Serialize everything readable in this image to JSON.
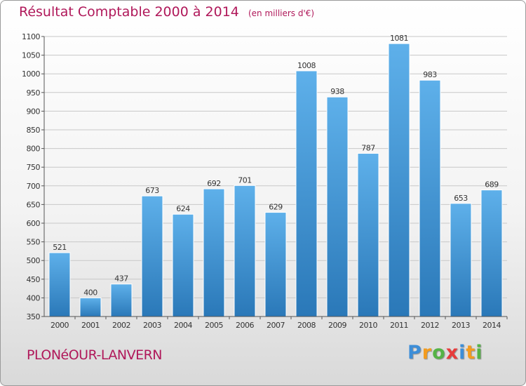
{
  "title": "Résultat Comptable 2000 à 2014",
  "unit_note": "(en milliers d'€)",
  "place_name": "PLONéOUR-LANVERN",
  "logo": {
    "text": "Proxiti",
    "letters": [
      {
        "char": "P",
        "color": "#3d8ed8"
      },
      {
        "char": "r",
        "color": "#f39c1f"
      },
      {
        "char": "o",
        "color": "#55b346"
      },
      {
        "char": "x",
        "color": "#e73c3c"
      },
      {
        "char": "i",
        "color": "#3d8ed8"
      },
      {
        "char": "t",
        "color": "#f39c1f"
      },
      {
        "char": "i",
        "color": "#55b346"
      }
    ]
  },
  "colors": {
    "accent": "#b0185a",
    "bar_top": "#5eb0ea",
    "bar_bottom": "#2a78b8",
    "grid": "#c8c8c8",
    "text": "#333333"
  },
  "chart_data": {
    "type": "bar",
    "title": "Résultat Comptable 2000 à 2014",
    "subtitle": "(en milliers d'€)",
    "xlabel": "",
    "ylabel": "",
    "categories": [
      "2000",
      "2001",
      "2002",
      "2003",
      "2004",
      "2005",
      "2006",
      "2007",
      "2008",
      "2009",
      "2010",
      "2011",
      "2012",
      "2013",
      "2014"
    ],
    "values": [
      521,
      400,
      437,
      673,
      624,
      692,
      701,
      629,
      1008,
      938,
      787,
      1081,
      983,
      653,
      689
    ],
    "data_labels": [
      "521",
      "400",
      "437",
      "673",
      "624",
      "692",
      "701",
      "629",
      "1008",
      "938",
      "787",
      "1081",
      "983",
      "653",
      "689"
    ],
    "ylim": [
      350,
      1100
    ],
    "yticks": [
      350,
      400,
      450,
      500,
      550,
      600,
      650,
      700,
      750,
      800,
      850,
      900,
      950,
      1000,
      1050,
      1100
    ],
    "grid": true,
    "legend": "none"
  }
}
